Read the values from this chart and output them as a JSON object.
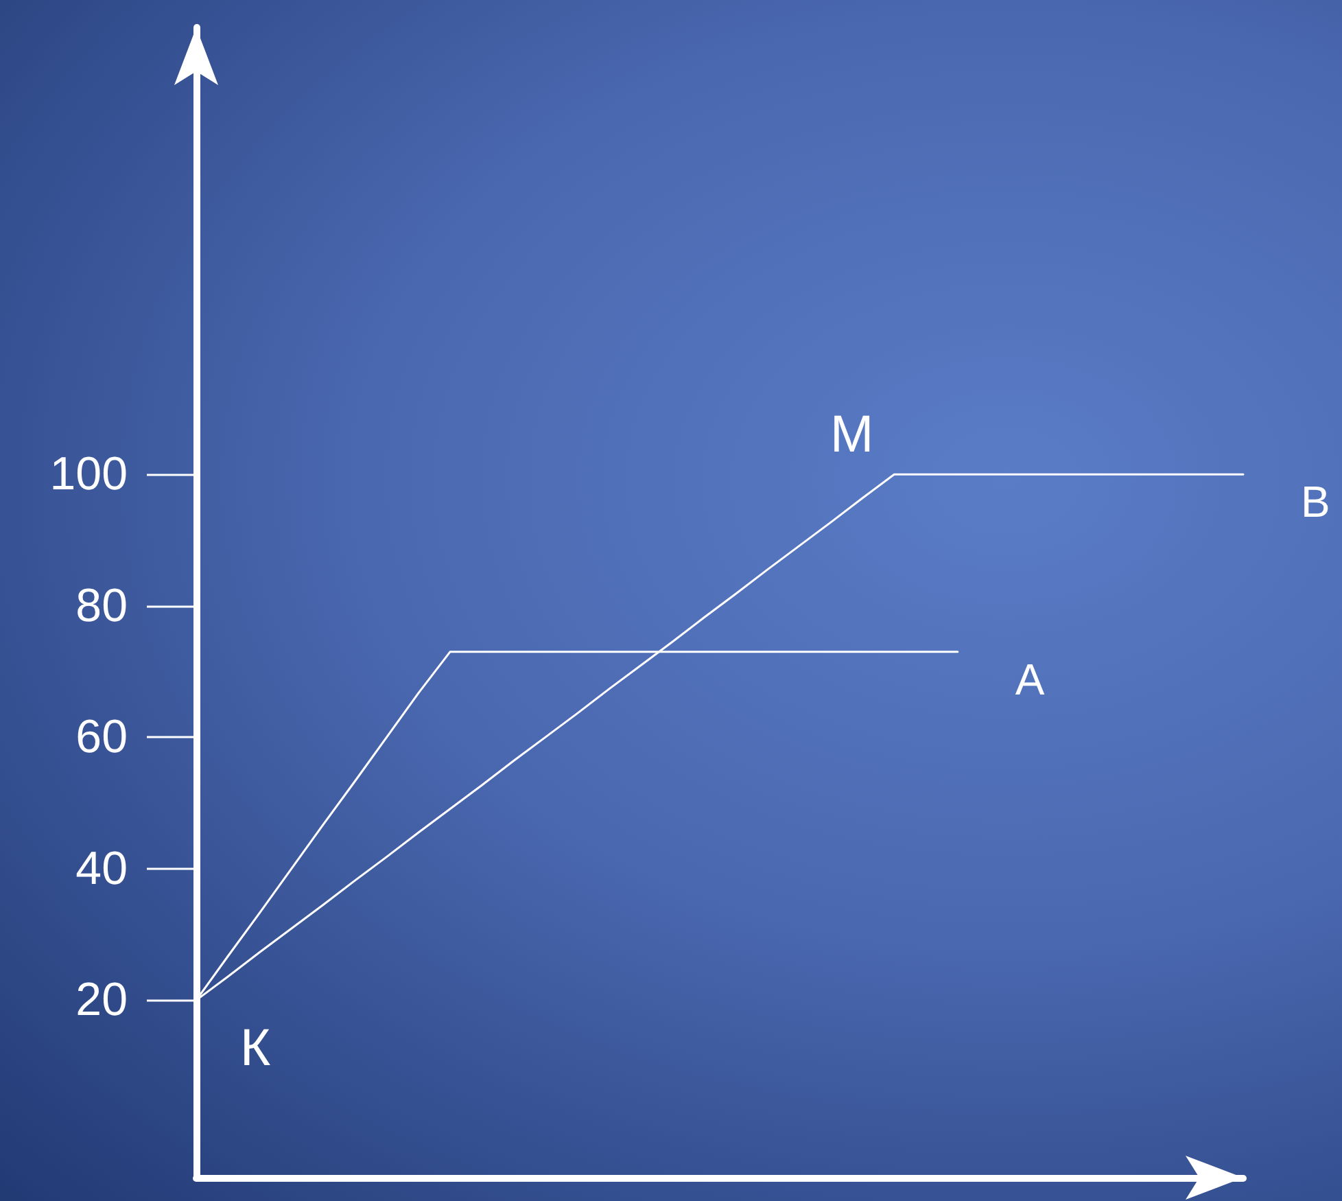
{
  "chart_data": {
    "type": "line",
    "categories": [
      null,
      null,
      null,
      null,
      null,
      null,
      null,
      null,
      null,
      null,
      null,
      null,
      null,
      null,
      null,
      null,
      null,
      null,
      null,
      null,
      null,
      null,
      null,
      null,
      null,
      null,
      null,
      null,
      null,
      null,
      null,
      null,
      null,
      null
    ],
    "series": [
      {
        "name": "А",
        "color": "#ffffff",
        "values": [
          20,
          26.7,
          33.3,
          40,
          46.7,
          53.3,
          60,
          66.7,
          73,
          73,
          73,
          73,
          73,
          73,
          73,
          73,
          73,
          73,
          73,
          73,
          73,
          73,
          73,
          73,
          73,
          null,
          null,
          null,
          null,
          null,
          null,
          null,
          null,
          null
        ]
      },
      {
        "name": "В",
        "color": "#ffffff",
        "values": [
          20,
          23.6,
          27.3,
          30.9,
          34.5,
          38.2,
          41.8,
          45.5,
          49.1,
          52.7,
          56.4,
          60,
          63.6,
          67.3,
          70.9,
          74.5,
          78.2,
          81.8,
          85.5,
          89.1,
          92.7,
          96.4,
          100,
          100,
          100,
          100,
          100,
          100,
          100,
          100,
          100,
          100,
          100,
          100
        ]
      }
    ],
    "annotations": [
      "К",
      "М"
    ],
    "ylim": [
      -7,
      168
    ],
    "yticks": [
      20,
      40,
      60,
      80,
      100
    ],
    "grid": false,
    "legend": false,
    "marker": "none",
    "line_style": "solid",
    "tick_labels": "y"
  }
}
